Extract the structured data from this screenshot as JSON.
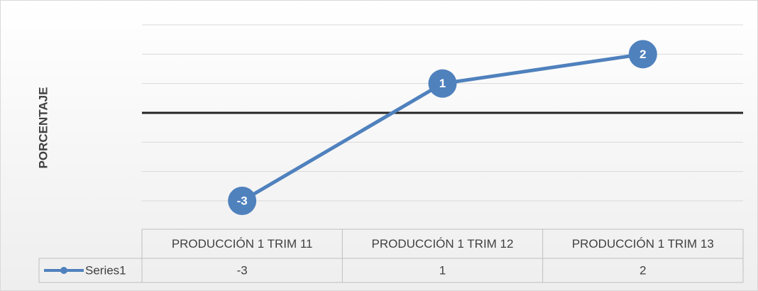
{
  "chart_data": {
    "type": "line",
    "y_label": "PORCENTAJE",
    "categories": [
      "PRODUCCIÓN 1 TRIM 11",
      "PRODUCCIÓN 1 TRIM 12",
      "PRODUCCIÓN 1 TRIM 13"
    ],
    "series": [
      {
        "name": "Series1",
        "color": "#4f81bd",
        "values": [
          -3,
          1,
          2
        ]
      }
    ],
    "ylim": [
      -3,
      3
    ],
    "yticks": [
      -3,
      -2,
      -1,
      0,
      1,
      2,
      3
    ],
    "grid": true,
    "data_table": true
  }
}
